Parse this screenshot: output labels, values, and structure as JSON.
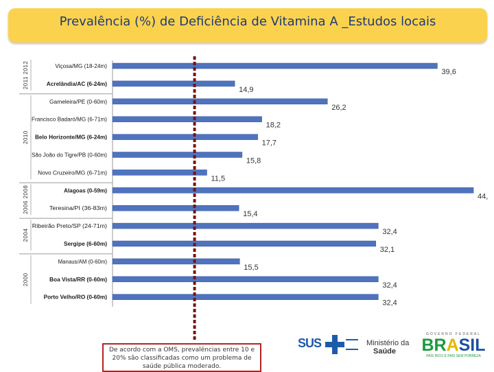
{
  "title": "Prevalência (%) de Deficiência de Vitamina A _Estudos locais",
  "chart_data": {
    "type": "bar",
    "orientation": "horizontal",
    "title": "Prevalência (%) de Deficiência de Vitamina A _Estudos locais",
    "xlim": [
      0,
      45
    ],
    "reference_line": 10,
    "bar_color": "#4f73be",
    "categories": [
      "Viçosa/MG (18-24m)",
      "Acrelândia/AC (6-24m)",
      "Gameleira/PE (0-60m)",
      "Francisco Badaró/MG (6-71m)",
      "Belo Horizonte/MG (6-24m)",
      "São João do Tigre/PB (0-60m)",
      "Novo Cruzeiro/MG (6-71m)",
      "Alagoas (0-59m)",
      "Teresina/PI (36-83m)",
      "Ribeirão Preto/SP (24-71m)",
      "Sergipe (6-60m)",
      "Manaus/AM (0-60m)",
      "Boa Vista/RR (0-60m)",
      "Porto Velho/RO (0-60m)"
    ],
    "bold": [
      false,
      true,
      false,
      false,
      true,
      false,
      false,
      true,
      false,
      false,
      true,
      false,
      true,
      true
    ],
    "values": [
      39.6,
      14.9,
      26.2,
      18.2,
      17.7,
      15.8,
      11.5,
      44.0,
      15.4,
      32.4,
      32.1,
      15.5,
      32.4,
      32.4
    ],
    "value_labels": [
      "39,6",
      "14,9",
      "26,2",
      "18,2",
      "17,7",
      "15,8",
      "11,5",
      "44,",
      "15,4",
      "32,4",
      "32,1",
      "15,5",
      "32,4",
      "32,4"
    ],
    "year_groups": [
      {
        "label": "2011 2012",
        "from": 0,
        "to": 1
      },
      {
        "label": "2010",
        "from": 2,
        "to": 6
      },
      {
        "label": "2006 2008",
        "from": 7,
        "to": 8
      },
      {
        "label": "2004",
        "from": 9,
        "to": 10
      },
      {
        "label": "2000",
        "from": 11,
        "to": 13
      }
    ]
  },
  "note": "De acordo com a OMS, prevalências entre 10 e 20% são classificadas como um problema de saúde pública moderado.",
  "logos": {
    "sus": "SUS",
    "ministerio_line1": "Ministério da",
    "ministerio_line2": "Saúde",
    "gov_federal": "GOVERNO FEDERAL",
    "brasil_parts": [
      "BR",
      "A",
      "SIL"
    ],
    "slogan": "PAÍS RICO É PAÍS SEM POBREZA"
  },
  "colors": {
    "banner": "#fbd24e",
    "title": "#1f3a75",
    "bars": "#4f73be",
    "reference_line": "#8b1a1a",
    "note_border": "#b22222"
  }
}
